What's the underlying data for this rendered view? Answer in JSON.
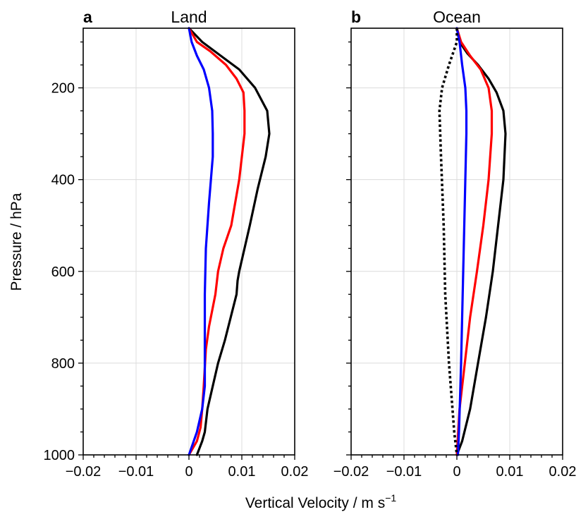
{
  "chart_data": [
    {
      "type": "line",
      "panel_label": "a",
      "title": "Land",
      "xlabel": "",
      "ylabel": "Pressure / hPa",
      "xlim": [
        -0.02,
        0.02
      ],
      "ylim": [
        1000,
        70
      ],
      "y_inverted": true,
      "grid": true,
      "xticks": [
        -0.02,
        -0.01,
        0,
        0.01,
        0.02
      ],
      "xtick_labels": [
        "−0.02",
        "−0.01",
        "0",
        "0.01",
        "0.02"
      ],
      "yticks": [
        200,
        400,
        600,
        800,
        1000
      ],
      "ytick_labels": [
        "200",
        "400",
        "600",
        "800",
        "1000"
      ],
      "series": [
        {
          "name": "black",
          "color": "#000000",
          "style": "solid",
          "x": [
            0.0,
            0.0025,
            0.006,
            0.0095,
            0.0125,
            0.0148,
            0.0152,
            0.0145,
            0.013,
            0.0115,
            0.0095,
            0.0092,
            0.009,
            0.0068,
            0.0055,
            0.0045,
            0.0035,
            0.003,
            0.0025,
            0.0015
          ],
          "y": [
            70,
            100,
            130,
            160,
            200,
            250,
            300,
            350,
            420,
            500,
            600,
            620,
            650,
            750,
            800,
            850,
            900,
            950,
            970,
            1000
          ]
        },
        {
          "name": "red",
          "color": "#ff0000",
          "style": "solid",
          "x": [
            0.0,
            0.0015,
            0.004,
            0.007,
            0.009,
            0.0103,
            0.0105,
            0.0105,
            0.0095,
            0.008,
            0.0065,
            0.0055,
            0.005,
            0.0038,
            0.0032,
            0.0028,
            0.0025,
            0.0022,
            0.0015,
            0.0
          ],
          "y": [
            70,
            100,
            120,
            150,
            180,
            210,
            250,
            300,
            400,
            500,
            550,
            600,
            650,
            720,
            770,
            850,
            900,
            940,
            970,
            1000
          ]
        },
        {
          "name": "blue",
          "color": "#0000ff",
          "style": "solid",
          "x": [
            0.0,
            0.0005,
            0.0015,
            0.0028,
            0.0038,
            0.0044,
            0.0045,
            0.0045,
            0.0038,
            0.0032,
            0.003,
            0.003,
            0.003,
            0.003,
            0.0025,
            0.0015,
            0.0
          ],
          "y": [
            70,
            100,
            130,
            160,
            200,
            250,
            300,
            350,
            450,
            550,
            650,
            700,
            750,
            850,
            900,
            950,
            1000
          ]
        }
      ]
    },
    {
      "type": "line",
      "panel_label": "b",
      "title": "Ocean",
      "xlabel": "",
      "ylabel": "",
      "xlim": [
        -0.02,
        0.02
      ],
      "ylim": [
        1000,
        70
      ],
      "y_inverted": true,
      "grid": true,
      "xticks": [
        -0.02,
        -0.01,
        0,
        0.01,
        0.02
      ],
      "xtick_labels": [
        "−0.02",
        "−0.01",
        "0",
        "0.01",
        "0.02"
      ],
      "yticks": [
        200,
        400,
        600,
        800,
        1000
      ],
      "yticks_labelled": false,
      "series": [
        {
          "name": "black",
          "color": "#000000",
          "style": "solid",
          "x": [
            0.0,
            0.0005,
            0.002,
            0.004,
            0.006,
            0.0075,
            0.0088,
            0.0092,
            0.0088,
            0.0078,
            0.0068,
            0.0055,
            0.004,
            0.0025,
            0.001,
            0.0
          ],
          "y": [
            70,
            100,
            125,
            150,
            180,
            210,
            250,
            300,
            400,
            500,
            600,
            700,
            800,
            900,
            970,
            1000
          ]
        },
        {
          "name": "red",
          "color": "#ff0000",
          "style": "solid",
          "x": [
            0.0,
            0.0008,
            0.0025,
            0.0045,
            0.006,
            0.0066,
            0.0066,
            0.006,
            0.005,
            0.0038,
            0.0025,
            0.0015,
            0.0005,
            0.0
          ],
          "y": [
            70,
            100,
            130,
            160,
            200,
            250,
            300,
            400,
            500,
            600,
            700,
            800,
            900,
            1000
          ]
        },
        {
          "name": "blue",
          "color": "#0000ff",
          "style": "solid",
          "x": [
            0.0,
            0.0005,
            0.001,
            0.0016,
            0.0018,
            0.0018,
            0.0016,
            0.0014,
            0.0012,
            0.0008,
            0.0004,
            0.0002
          ],
          "y": [
            70,
            100,
            150,
            200,
            250,
            300,
            400,
            500,
            600,
            800,
            950,
            1000
          ]
        },
        {
          "name": "black dotted",
          "color": "#000000",
          "style": "dotted",
          "x": [
            0.0,
            0.0,
            -0.0015,
            -0.0028,
            -0.0033,
            -0.003,
            -0.0025,
            -0.0022,
            -0.0015,
            -0.0005,
            0.0
          ],
          "y": [
            70,
            100,
            150,
            200,
            250,
            350,
            500,
            650,
            800,
            950,
            1000
          ]
        }
      ]
    }
  ],
  "shared": {
    "xlabel_main": "Vertical Velocity / m s",
    "xlabel_superscript": "−1"
  }
}
